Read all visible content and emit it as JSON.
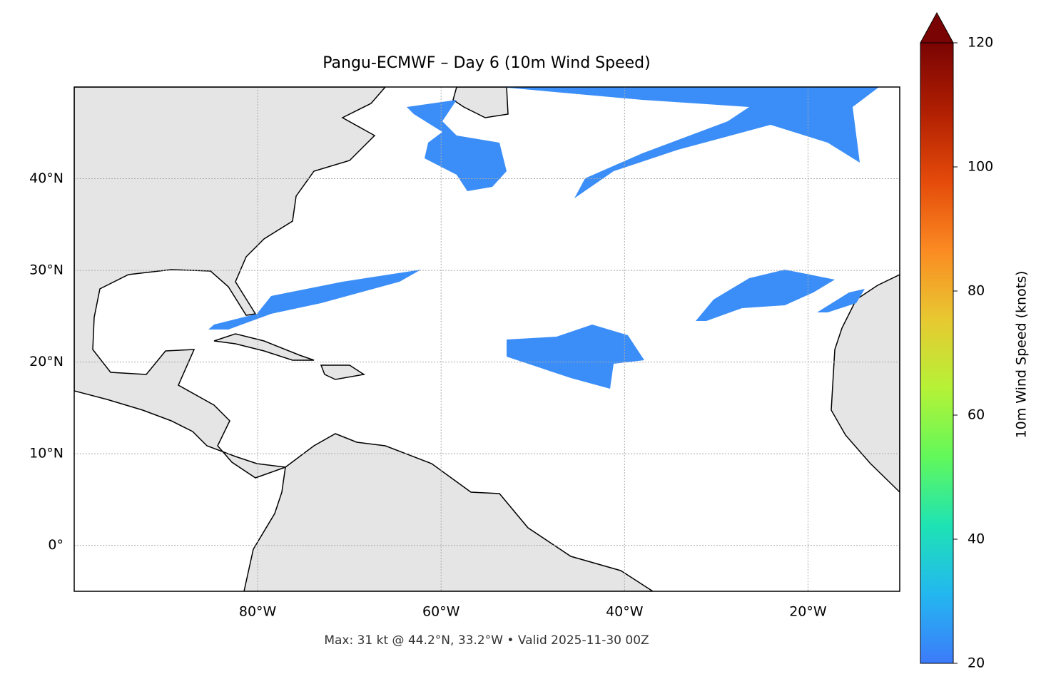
{
  "map": {
    "title": "Pangu-ECMWF – Day 6 (10m Wind Speed)",
    "xlim": [
      -100,
      -10
    ],
    "ylim": [
      -5,
      50
    ],
    "xticks": [
      {
        "value": -80,
        "label": "80°W"
      },
      {
        "value": -60,
        "label": "60°W"
      },
      {
        "value": -40,
        "label": "40°W"
      },
      {
        "value": -20,
        "label": "20°W"
      }
    ],
    "yticks": [
      {
        "value": 0,
        "label": "0°"
      },
      {
        "value": 10,
        "label": "10°N"
      },
      {
        "value": 20,
        "label": "20°N"
      },
      {
        "value": 30,
        "label": "30°N"
      },
      {
        "value": 40,
        "label": "40°N"
      }
    ],
    "grid": true,
    "colorbar": {
      "label": "10m Wind Speed (knots)",
      "lim": [
        20,
        120
      ],
      "ticks": [
        20,
        40,
        60,
        80,
        100,
        120
      ],
      "colors": [
        "#3d7bfa",
        "#23b7f0",
        "#1ee3b4",
        "#62f85a",
        "#b6f236",
        "#e8c831",
        "#fb8a22",
        "#e44a0a",
        "#b01f02",
        "#7a0403"
      ]
    },
    "footer": "Max: 31 kt @ 44.2°N, 33.2°W • Valid 2025-11-30 00Z"
  }
}
